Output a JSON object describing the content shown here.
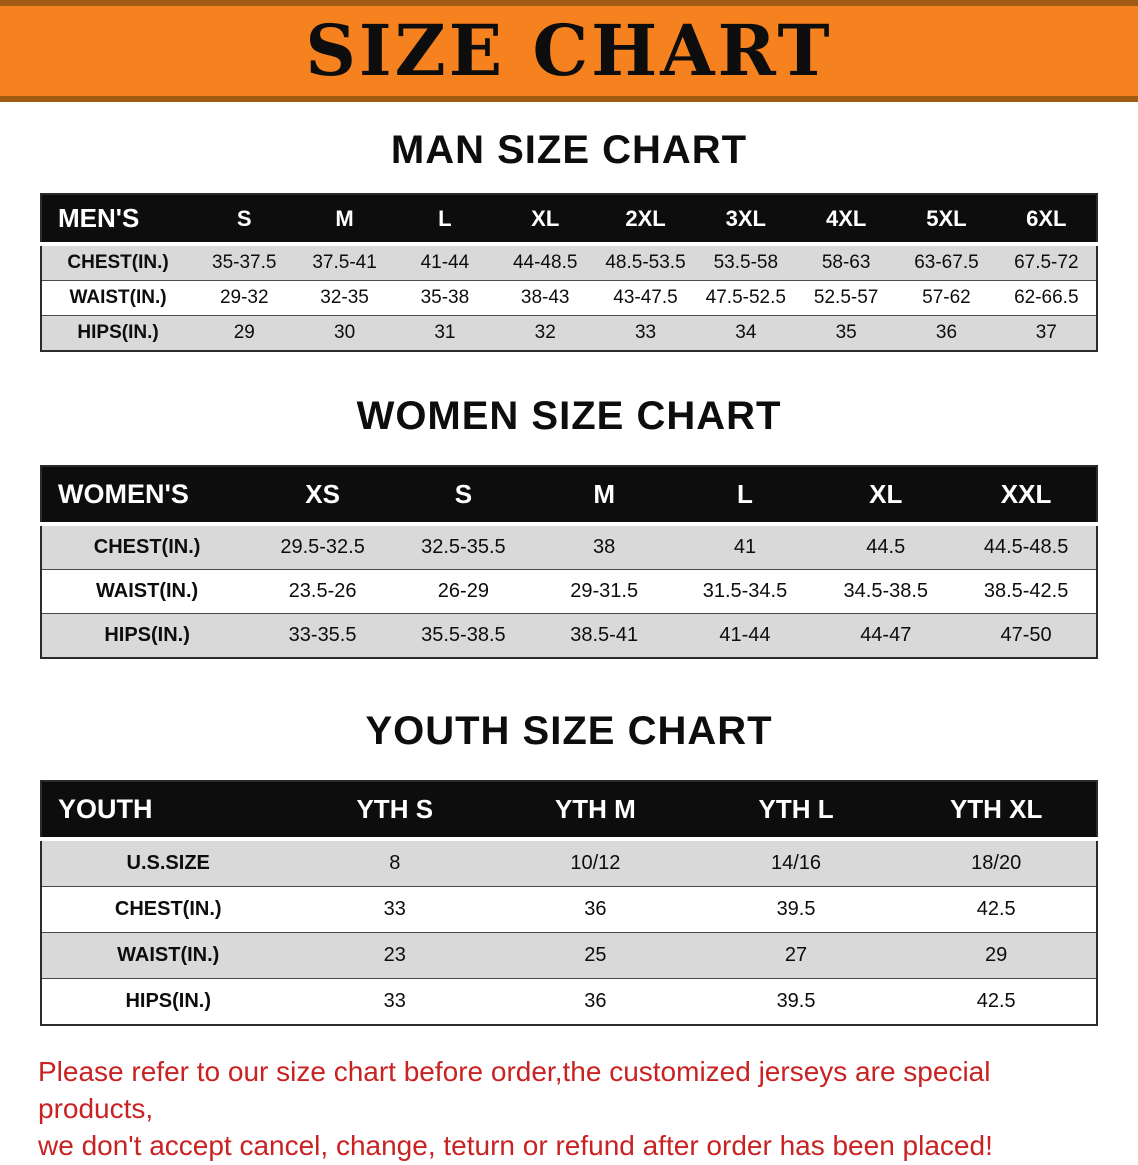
{
  "banner": {
    "title": "SIZE CHART"
  },
  "colors": {
    "banner_orange": "#f5821f",
    "header_black": "#0d0d0d",
    "row_gray": "#d9d9d9",
    "disclaimer_red": "#c92222"
  },
  "men": {
    "heading": "MAN SIZE CHART",
    "header": [
      "MEN'S",
      "S",
      "M",
      "L",
      "XL",
      "2XL",
      "3XL",
      "4XL",
      "5XL",
      "6XL"
    ],
    "rows": [
      [
        "CHEST(IN.)",
        "35-37.5",
        "37.5-41",
        "41-44",
        "44-48.5",
        "48.5-53.5",
        "53.5-58",
        "58-63",
        "63-67.5",
        "67.5-72"
      ],
      [
        "WAIST(IN.)",
        "29-32",
        "32-35",
        "35-38",
        "38-43",
        "43-47.5",
        "47.5-52.5",
        "52.5-57",
        "57-62",
        "62-66.5"
      ],
      [
        "HIPS(IN.)",
        "29",
        "30",
        "31",
        "32",
        "33",
        "34",
        "35",
        "36",
        "37"
      ]
    ]
  },
  "women": {
    "heading": "WOMEN SIZE CHART",
    "header": [
      "WOMEN'S",
      "XS",
      "S",
      "M",
      "L",
      "XL",
      "XXL"
    ],
    "rows": [
      [
        "CHEST(IN.)",
        "29.5-32.5",
        "32.5-35.5",
        "38",
        "41",
        "44.5",
        "44.5-48.5"
      ],
      [
        "WAIST(IN.)",
        "23.5-26",
        "26-29",
        "29-31.5",
        "31.5-34.5",
        "34.5-38.5",
        "38.5-42.5"
      ],
      [
        "HIPS(IN.)",
        "33-35.5",
        "35.5-38.5",
        "38.5-41",
        "41-44",
        "44-47",
        "47-50"
      ]
    ]
  },
  "youth": {
    "heading": "YOUTH SIZE CHART",
    "header": [
      "YOUTH",
      "YTH S",
      "YTH M",
      "YTH L",
      "YTH XL"
    ],
    "rows": [
      [
        "U.S.SIZE",
        "8",
        "10/12",
        "14/16",
        "18/20"
      ],
      [
        "CHEST(IN.)",
        "33",
        "36",
        "39.5",
        "42.5"
      ],
      [
        "WAIST(IN.)",
        "23",
        "25",
        "27",
        "29"
      ],
      [
        "HIPS(IN.)",
        "33",
        "36",
        "39.5",
        "42.5"
      ]
    ]
  },
  "disclaimer": {
    "line1": "Please refer to our size chart before order,the customized jerseys are special products,",
    "line2": "we don't accept cancel, change, teturn or refund after order has been placed!"
  }
}
